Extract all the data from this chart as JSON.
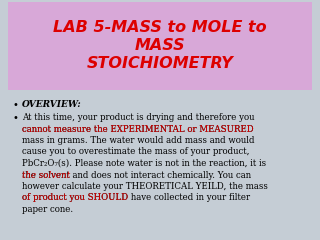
{
  "title_line1": "LAB 5-MASS to MOLE to",
  "title_line2": "MASS",
  "title_line3": "STOICHIOMETRY",
  "title_color": "#dd0000",
  "title_bg_color": "#d8a8d8",
  "body_bg_color": "#c5cdd5",
  "bullet1": "OVERVIEW:",
  "figsize": [
    3.2,
    2.4
  ],
  "dpi": 100
}
